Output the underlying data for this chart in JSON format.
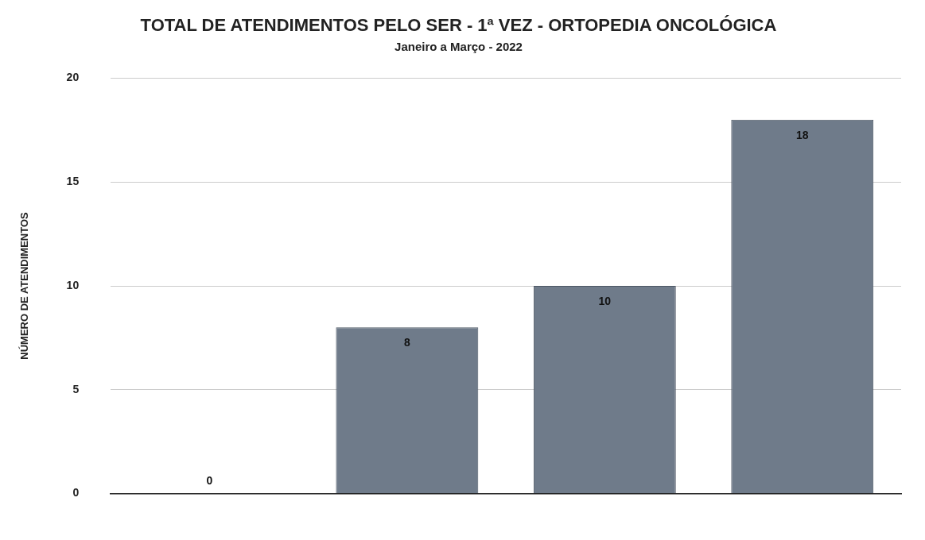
{
  "chart_data": {
    "type": "bar",
    "title": "TOTAL DE ATENDIMENTOS PELO SER - 1ª VEZ - ORTOPEDIA ONCOLÓGICA",
    "subtitle": "Janeiro a Março - 2022",
    "ylabel": "NÚMERO DE ATENDIMENTOS",
    "categories": [
      null,
      null,
      null,
      null
    ],
    "values": [
      0,
      8,
      10,
      18
    ],
    "color": "#6f7b8a",
    "ylim": [
      0,
      20
    ],
    "yticks": [
      0,
      5,
      10,
      15,
      20
    ],
    "grid": "y",
    "data_labels": true
  }
}
